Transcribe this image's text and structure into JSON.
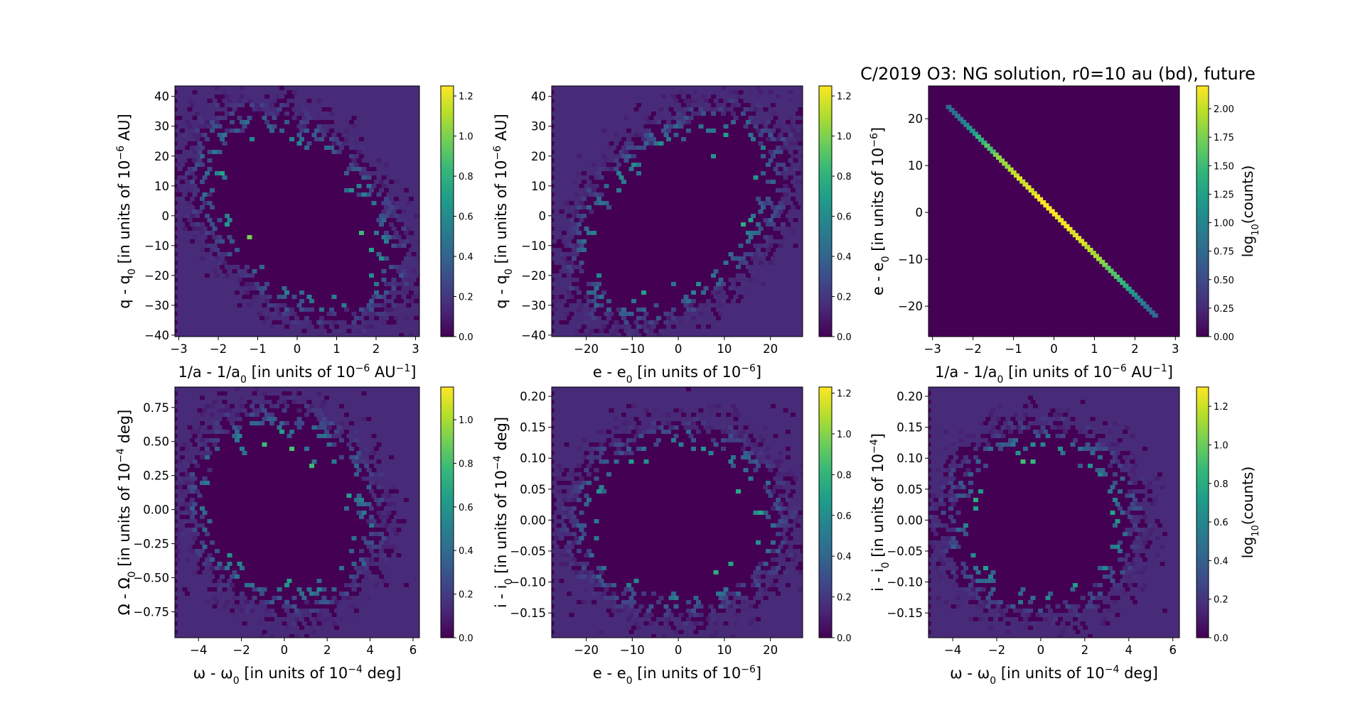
{
  "figure_title": "C/2019 O3: NG solution, r0=10 au (bd), future",
  "colormap": [
    "#440154",
    "#482878",
    "#3e4989",
    "#31688e",
    "#26828e",
    "#1f9e89",
    "#35b779",
    "#6ece58",
    "#b5de2b",
    "#fde725"
  ],
  "chart_data": [
    {
      "type": "heatmap",
      "subtype": "hexbin",
      "title": "",
      "xlabel": "1/a - 1/a",
      "xlabel_sub": "0",
      "xlabel_rest": " [in units of 10",
      "xlabel_exp": "−6",
      "xlabel_unit": " AU",
      "xlabel_unit_exp": "−1",
      "xlabel_end": "]",
      "ylabel": "q - q",
      "ylabel_sub": "0",
      "ylabel_rest": " [in units of 10",
      "ylabel_exp": "−6",
      "ylabel_end": " AU]",
      "xlim": [
        -3.1,
        3.1
      ],
      "ylim": [
        -40.5,
        43.5
      ],
      "xticks": [
        -3,
        -2,
        -1,
        0,
        1,
        2,
        3
      ],
      "xticklabels": [
        "−3",
        "−2",
        "−1",
        "0",
        "1",
        "2",
        "3"
      ],
      "yticks": [
        -40,
        -30,
        -20,
        -10,
        0,
        10,
        20,
        30,
        40
      ],
      "yticklabels": [
        "−40",
        "−30",
        "−20",
        "−10",
        "0",
        "10",
        "20",
        "30",
        "40"
      ],
      "x_sigma": 0.95,
      "y_sigma": 13,
      "correlation": -0.4,
      "colorbar": {
        "max": 1.25,
        "ticks": [
          0,
          0.2,
          0.4,
          0.6,
          0.8,
          1.0,
          1.2
        ],
        "ticklabels": [
          "0.0",
          "0.2",
          "0.4",
          "0.6",
          "0.8",
          "1.0",
          "1.2"
        ],
        "label": ""
      }
    },
    {
      "type": "heatmap",
      "subtype": "hexbin",
      "title": "",
      "xlabel": "e - e",
      "xlabel_sub": "0",
      "xlabel_rest": " [in units of 10",
      "xlabel_exp": "−6",
      "xlabel_unit": "",
      "xlabel_unit_exp": "",
      "xlabel_end": "]",
      "ylabel": "q - q",
      "ylabel_sub": "0",
      "ylabel_rest": " [in units of 10",
      "ylabel_exp": "−6",
      "ylabel_end": " AU]",
      "xlim": [
        -27.5,
        27
      ],
      "ylim": [
        -40.5,
        43.5
      ],
      "xticks": [
        -20,
        -10,
        0,
        10,
        20
      ],
      "xticklabels": [
        "−20",
        "−10",
        "0",
        "10",
        "20"
      ],
      "yticks": [
        -40,
        -30,
        -20,
        -10,
        0,
        10,
        20,
        30,
        40
      ],
      "yticklabels": [
        "−40",
        "−30",
        "−20",
        "−10",
        "0",
        "10",
        "20",
        "30",
        "40"
      ],
      "x_sigma": 8.5,
      "y_sigma": 13,
      "correlation": 0.4,
      "colorbar": {
        "max": 1.25,
        "ticks": [
          0,
          0.2,
          0.4,
          0.6,
          0.8,
          1.0,
          1.2
        ],
        "ticklabels": [
          "0.0",
          "0.2",
          "0.4",
          "0.6",
          "0.8",
          "1.0",
          "1.2"
        ],
        "label": ""
      }
    },
    {
      "type": "heatmap",
      "subtype": "hexbin",
      "title": "",
      "xlabel": "1/a - 1/a",
      "xlabel_sub": "0",
      "xlabel_rest": " [in units of 10",
      "xlabel_exp": "−6",
      "xlabel_unit": " AU",
      "xlabel_unit_exp": "−1",
      "xlabel_end": "]",
      "ylabel": "e - e",
      "ylabel_sub": "0",
      "ylabel_rest": " [in units of 10",
      "ylabel_exp": "−6",
      "ylabel_end": "]",
      "xlim": [
        -3.1,
        3.1
      ],
      "ylim": [
        -26.5,
        27
      ],
      "xticks": [
        -3,
        -2,
        -1,
        0,
        1,
        2,
        3
      ],
      "xticklabels": [
        "−3",
        "−2",
        "−1",
        "0",
        "1",
        "2",
        "3"
      ],
      "yticks": [
        -20,
        -10,
        0,
        10,
        20
      ],
      "yticklabels": [
        "−20",
        "−10",
        "0",
        "10",
        "20"
      ],
      "line": {
        "x_start": -2.6,
        "y_start": 22.5,
        "x_end": 2.5,
        "y_end": -22
      },
      "colorbar": {
        "max": 2.2,
        "ticks": [
          0,
          0.25,
          0.5,
          0.75,
          1.0,
          1.25,
          1.5,
          1.75,
          2.0
        ],
        "ticklabels": [
          "0.00",
          "0.25",
          "0.50",
          "0.75",
          "1.00",
          "1.25",
          "1.50",
          "1.75",
          "2.00"
        ],
        "label": "log",
        "label_sub": "10",
        "label_end": "(counts)"
      }
    },
    {
      "type": "heatmap",
      "subtype": "hexbin",
      "title": "",
      "xlabel": "ω - ω",
      "xlabel_sub": "0",
      "xlabel_rest": " [in units of 10",
      "xlabel_exp": "−4",
      "xlabel_unit": "",
      "xlabel_unit_exp": "",
      "xlabel_end": " deg]",
      "ylabel": "Ω - Ω",
      "ylabel_sub": "0",
      "ylabel_rest": " [in units of 10",
      "ylabel_exp": "−4",
      "ylabel_end": " deg]",
      "xlim": [
        -5.1,
        6.3
      ],
      "ylim": [
        -0.94,
        0.9
      ],
      "xticks": [
        -4,
        -2,
        0,
        2,
        4,
        6
      ],
      "xticklabels": [
        "−4",
        "−2",
        "0",
        "2",
        "4",
        "6"
      ],
      "yticks": [
        -0.75,
        -0.5,
        -0.25,
        0,
        0.25,
        0.5,
        0.75
      ],
      "yticklabels": [
        "−0.75",
        "−0.50",
        "−0.25",
        "0.00",
        "0.25",
        "0.50",
        "0.75"
      ],
      "x_sigma": 1.6,
      "y_sigma": 0.27,
      "correlation": -0.1,
      "colorbar": {
        "max": 1.15,
        "ticks": [
          0,
          0.2,
          0.4,
          0.6,
          0.8,
          1.0
        ],
        "ticklabels": [
          "0.0",
          "0.2",
          "0.4",
          "0.6",
          "0.8",
          "1.0"
        ],
        "label": ""
      }
    },
    {
      "type": "heatmap",
      "subtype": "hexbin",
      "title": "",
      "xlabel": "e - e",
      "xlabel_sub": "0",
      "xlabel_rest": " [in units of 10",
      "xlabel_exp": "−6",
      "xlabel_unit": "",
      "xlabel_unit_exp": "",
      "xlabel_end": "]",
      "ylabel": "i - i",
      "ylabel_sub": "0",
      "ylabel_rest": " [in units of 10",
      "ylabel_exp": "−4",
      "ylabel_end": " deg]",
      "xlim": [
        -27.5,
        27
      ],
      "ylim": [
        -0.19,
        0.215
      ],
      "xticks": [
        -20,
        -10,
        0,
        10,
        20
      ],
      "xticklabels": [
        "−20",
        "−10",
        "0",
        "10",
        "20"
      ],
      "yticks": [
        -0.15,
        -0.1,
        -0.05,
        0,
        0.05,
        0.1,
        0.15,
        0.2
      ],
      "yticklabels": [
        "−0.15",
        "−0.10",
        "−0.05",
        "0.00",
        "0.05",
        "0.10",
        "0.15",
        "0.20"
      ],
      "x_sigma": 8.5,
      "y_sigma": 0.055,
      "correlation": 0,
      "colorbar": {
        "max": 1.23,
        "ticks": [
          0,
          0.2,
          0.4,
          0.6,
          0.8,
          1.0,
          1.2
        ],
        "ticklabels": [
          "0.0",
          "0.2",
          "0.4",
          "0.6",
          "0.8",
          "1.0",
          "1.2"
        ],
        "label": ""
      }
    },
    {
      "type": "heatmap",
      "subtype": "hexbin",
      "title": "",
      "xlabel": "ω - ω",
      "xlabel_sub": "0",
      "xlabel_rest": " [in units of 10",
      "xlabel_exp": "−4",
      "xlabel_unit": "",
      "xlabel_unit_exp": "",
      "xlabel_end": " deg]",
      "ylabel": "i - i",
      "ylabel_sub": "0",
      "ylabel_rest": " [in units of 10",
      "ylabel_exp": "−4",
      "ylabel_end": "]",
      "xlim": [
        -5.1,
        6.3
      ],
      "ylim": [
        -0.19,
        0.215
      ],
      "xticks": [
        -4,
        -2,
        0,
        2,
        4,
        6
      ],
      "xticklabels": [
        "−4",
        "−2",
        "0",
        "2",
        "4",
        "6"
      ],
      "yticks": [
        -0.15,
        -0.1,
        -0.05,
        0,
        0.05,
        0.1,
        0.15,
        0.2
      ],
      "yticklabels": [
        "−0.15",
        "−0.10",
        "−0.05",
        "0.00",
        "0.05",
        "0.10",
        "0.15",
        "0.20"
      ],
      "x_sigma": 1.6,
      "y_sigma": 0.055,
      "correlation": 0,
      "colorbar": {
        "max": 1.3,
        "ticks": [
          0,
          0.2,
          0.4,
          0.6,
          0.8,
          1.0,
          1.2
        ],
        "ticklabels": [
          "0.0",
          "0.2",
          "0.4",
          "0.6",
          "0.8",
          "1.0",
          "1.2"
        ],
        "label": "log",
        "label_sub": "10",
        "label_end": "(counts)"
      }
    }
  ]
}
